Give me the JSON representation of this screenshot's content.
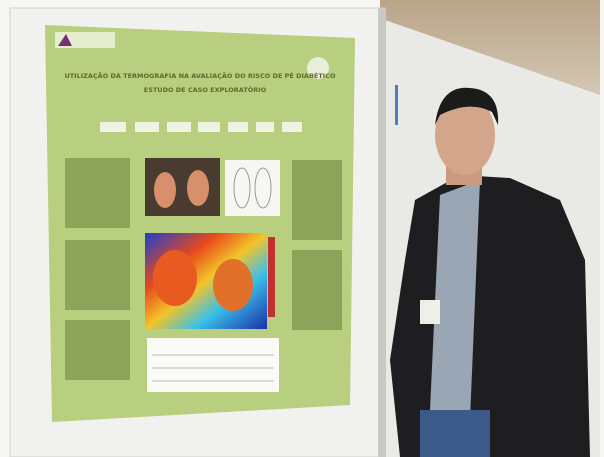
{
  "poster": {
    "title_lines": [
      "UTILIZAÇÃO DA TERMOGRAFIA NA AVALIAÇÃO DO RISCO DE PÉ DIABÉTICO",
      "ESTUDO DE CASO EXPLORATÓRIO"
    ]
  }
}
